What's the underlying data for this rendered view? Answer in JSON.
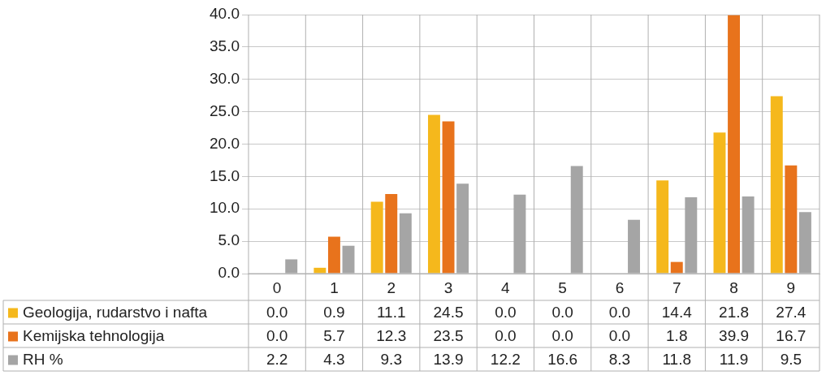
{
  "chart_data": {
    "type": "bar",
    "categories": [
      "0",
      "1",
      "2",
      "3",
      "4",
      "5",
      "6",
      "7",
      "8",
      "9"
    ],
    "series": [
      {
        "name": "Geologija, rudarstvo i nafta",
        "color": "#f5b81c",
        "values": [
          0.0,
          0.9,
          11.1,
          24.5,
          0.0,
          0.0,
          0.0,
          14.4,
          21.8,
          27.4
        ],
        "value_labels": [
          "0.0",
          "0.9",
          "11.1",
          "24.5",
          "0.0",
          "0.0",
          "0.0",
          "14.4",
          "21.8",
          "27.4"
        ]
      },
      {
        "name": "Kemijska tehnologija",
        "color": "#e8731c",
        "values": [
          0.0,
          5.7,
          12.3,
          23.5,
          0.0,
          0.0,
          0.0,
          1.8,
          39.9,
          16.7
        ],
        "value_labels": [
          "0.0",
          "5.7",
          "12.3",
          "23.5",
          "0.0",
          "0.0",
          "0.0",
          "1.8",
          "39.9",
          "16.7"
        ]
      },
      {
        "name": "RH %",
        "color": "#a5a5a5",
        "values": [
          2.2,
          4.3,
          9.3,
          13.9,
          12.2,
          16.6,
          8.3,
          11.8,
          11.9,
          9.5
        ],
        "value_labels": [
          "2.2",
          "4.3",
          "9.3",
          "13.9",
          "12.2",
          "16.6",
          "8.3",
          "11.8",
          "11.9",
          "9.5"
        ]
      }
    ],
    "ylim": [
      0,
      40
    ],
    "yticks": [
      {
        "value": 0,
        "label": "0.0"
      },
      {
        "value": 5,
        "label": "5.0"
      },
      {
        "value": 10,
        "label": "10.0"
      },
      {
        "value": 15,
        "label": "15.0"
      },
      {
        "value": 20,
        "label": "20.0"
      },
      {
        "value": 25,
        "label": "25.0"
      },
      {
        "value": 30,
        "label": "30.0"
      },
      {
        "value": 35,
        "label": "35.0"
      },
      {
        "value": 40,
        "label": "40.0"
      }
    ],
    "grid": "y",
    "legend": "bottom left"
  }
}
